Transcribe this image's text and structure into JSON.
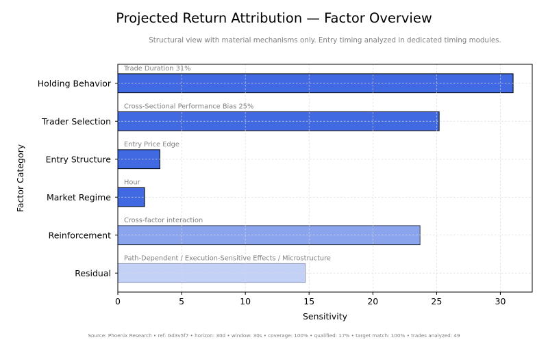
{
  "title": "Projected Return Attribution — Factor Overview",
  "subtitle": "Structural view with material mechanisms only. Entry timing analyzed in dedicated timing modules.",
  "footer": "Source: Phoenix Research • ref: Gd3v5f7 • horizon: 30d • window: 30s • coverage: 100% • qualified: 17% • target match: 100% • trades analyzed: 49",
  "chart_data": {
    "type": "bar",
    "orientation": "horizontal",
    "xlabel": "Sensitivity",
    "ylabel": "Factor Category",
    "xlim": [
      0,
      32.5
    ],
    "xticks": [
      0,
      5,
      10,
      15,
      20,
      25,
      30
    ],
    "grid": true,
    "categories": [
      "Holding Behavior",
      "Trader Selection",
      "Entry Structure",
      "Market Regime",
      "Reinforcement",
      "Residual"
    ],
    "values": [
      31.0,
      25.2,
      3.3,
      2.1,
      23.7,
      14.7
    ],
    "annotations": [
      "Trade Duration 31%",
      "Cross-Sectional Performance Bias 25%",
      "Entry Price Edge",
      "Hour",
      "Cross-factor interaction",
      "Path-Dependent / Execution-Sensitive Effects / Microstructure"
    ],
    "colors": [
      "#4169e1",
      "#4169e1",
      "#4169e1",
      "#4169e1",
      "#8aa4ee",
      "#c4d1f7"
    ],
    "edge_colors": [
      "#000000",
      "#000000",
      "#000000",
      "#000000",
      "#3a3f55",
      "#8c95b0"
    ]
  }
}
